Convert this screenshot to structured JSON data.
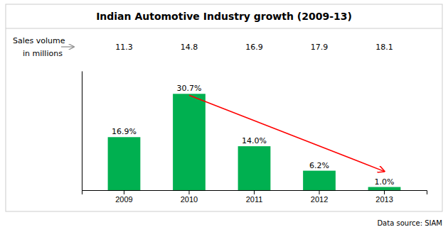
{
  "chart_data": {
    "type": "bar",
    "title": "Indian Automotive Industry growth (2009-13)",
    "categories": [
      "2009",
      "2010",
      "2011",
      "2012",
      "2013"
    ],
    "values": [
      16.9,
      30.7,
      14.0,
      6.2,
      1.0
    ],
    "value_labels": [
      "16.9%",
      "30.7%",
      "14.0%",
      "6.2%",
      "1.0%"
    ],
    "data_labels": true,
    "color": "#00b050",
    "ylim": [
      0,
      38
    ],
    "tick_labels": "x",
    "grid": false,
    "sales_volumes": [
      11.3,
      14.8,
      16.9,
      17.9,
      18.1
    ],
    "sales_label": [
      "Sales volume",
      "in millions"
    ],
    "source": "Data source: SIAM",
    "arrow": {
      "from": "2010",
      "to": "2013",
      "color": "red"
    }
  }
}
